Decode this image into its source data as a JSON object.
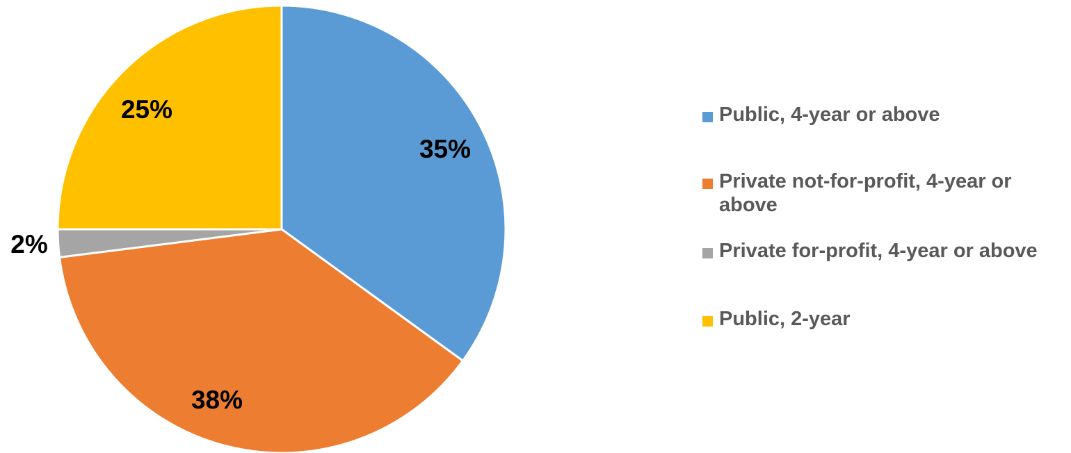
{
  "chart_data": {
    "type": "pie",
    "title": "",
    "slices": [
      {
        "name": "Public, 4-year or above",
        "value": 35,
        "label": "35%",
        "color": "#5b9bd5"
      },
      {
        "name": "Private not-for-profit, 4-year or above",
        "value": 38,
        "label": "38%",
        "color": "#ed7d31"
      },
      {
        "name": "Private for-profit, 4-year or above",
        "value": 2,
        "label": "2%",
        "color": "#a5a5a5"
      },
      {
        "name": "Public, 2-year",
        "value": 25,
        "label": "25%",
        "color": "#ffc000"
      }
    ],
    "legend_position": "right",
    "start_angle": "12 o'clock",
    "direction": "clockwise"
  }
}
